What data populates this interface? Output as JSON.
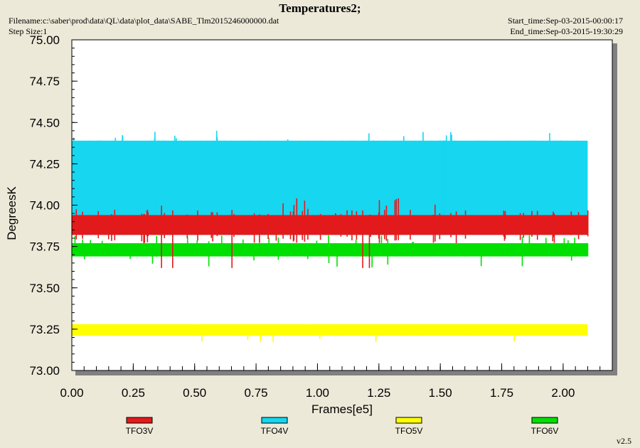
{
  "header": {
    "title": "Temperatures2;",
    "filename": "Filename:c:\\saber\\prod\\data\\QL\\data\\plot_data\\SABE_Tlm2015246000000.dat",
    "step_size": "Step Size:1",
    "start_time": "Start_time:Sep-03-2015-00:00:17",
    "end_time": "End_time:Sep-03-2015-19:30:29",
    "version": "v2.5"
  },
  "chart_data": {
    "type": "line",
    "title": "Temperatures2;",
    "xlabel": "Frames[e5]",
    "ylabel": "DegreesK",
    "xlim": [
      0,
      2.2
    ],
    "ylim": [
      73.0,
      75.0
    ],
    "x_ticks": [
      "0.00",
      "0.25",
      "0.50",
      "0.75",
      "1.00",
      "1.25",
      "1.50",
      "1.75",
      "2.00"
    ],
    "y_ticks": [
      "73.00",
      "73.25",
      "73.50",
      "73.75",
      "74.00",
      "74.25",
      "74.50",
      "74.75",
      "75.00"
    ],
    "x_range_data": [
      0.0,
      2.1
    ],
    "legend_placement": "bottom",
    "series": [
      {
        "name": "TFO3V",
        "color": "#e31a1c",
        "typical_range": [
          73.82,
          73.94
        ],
        "occasional_max": 74.05,
        "occasional_min": 73.62
      },
      {
        "name": "TFO4V",
        "color": "#16d6f0",
        "typical_range": [
          73.82,
          74.39
        ],
        "occasional_max": 74.45
      },
      {
        "name": "TFO5V",
        "color": "#ffff00",
        "typical_range": [
          73.21,
          73.28
        ],
        "occasional_min": 73.13
      },
      {
        "name": "TFO6V",
        "color": "#00e000",
        "typical_range": [
          73.69,
          73.77
        ],
        "occasional_max": 73.82,
        "occasional_min": 73.62
      }
    ]
  }
}
